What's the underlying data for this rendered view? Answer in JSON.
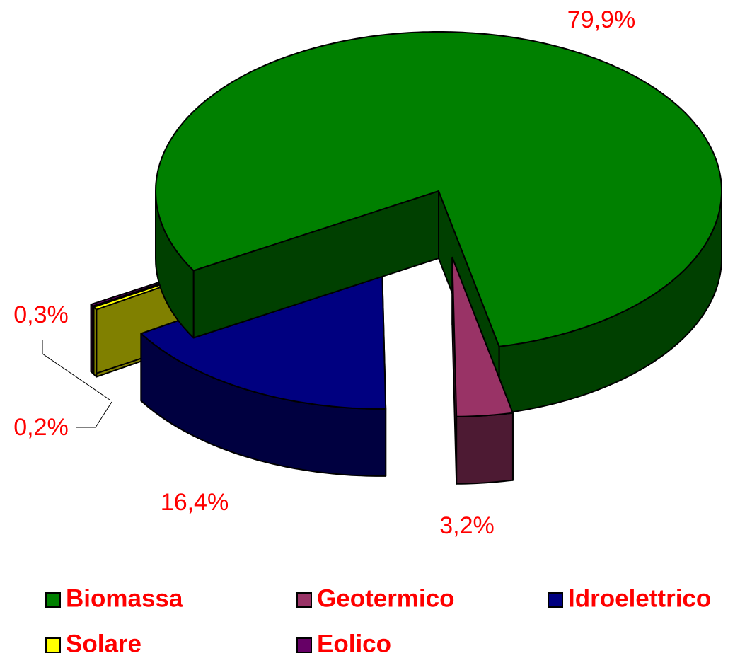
{
  "chart_data": {
    "type": "pie",
    "categories": [
      "Biomassa",
      "Geotermico",
      "Idroelettrico",
      "Solare",
      "Eolico"
    ],
    "values": [
      79.9,
      3.2,
      16.4,
      0.3,
      0.2
    ],
    "value_labels": [
      "79,9%",
      "3,2%",
      "16,4%",
      "0,3%",
      "0,2%"
    ],
    "colors": [
      "#008000",
      "#993366",
      "#000080",
      "#ffff00",
      "#660066"
    ],
    "legend": "bottom"
  }
}
